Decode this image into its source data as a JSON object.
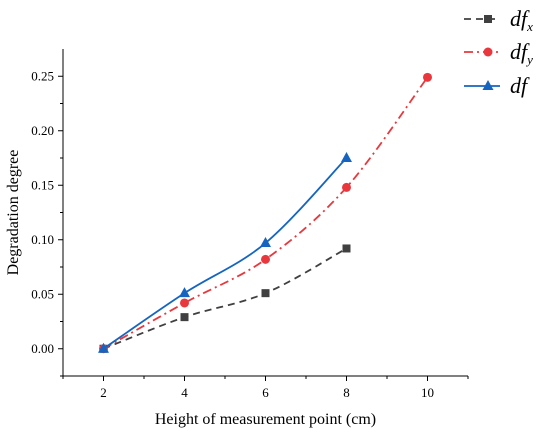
{
  "chart_data": {
    "type": "line",
    "xlabel": "Height of measurement point (cm)",
    "ylabel": "Degradation degree",
    "xlim": [
      1,
      11
    ],
    "ylim": [
      -0.025,
      0.275
    ],
    "xticks": [
      "2",
      "4",
      "6",
      "8",
      "10"
    ],
    "yticks": [
      "0.00",
      "0.05",
      "0.10",
      "0.15",
      "0.20",
      "0.25"
    ],
    "xtick_values": [
      2,
      4,
      6,
      8,
      10
    ],
    "ytick_values": [
      0,
      0.05,
      0.1,
      0.15,
      0.2,
      0.25
    ],
    "legend_position": "top-right, outside plot",
    "series": [
      {
        "name": "df",
        "subscript": "x",
        "color": "#404040",
        "marker": "square",
        "line_style": "dash",
        "x": [
          2,
          4,
          6,
          8
        ],
        "y": [
          0.0,
          0.029,
          0.051,
          0.092
        ]
      },
      {
        "name": "df",
        "subscript": "y",
        "color": "#e8383d",
        "marker": "circle",
        "line_style": "dash-dot",
        "x": [
          2,
          4,
          6,
          8,
          10
        ],
        "y": [
          0.0,
          0.042,
          0.082,
          0.148,
          0.249
        ]
      },
      {
        "name": "df",
        "subscript": "",
        "color": "#1565c0",
        "marker": "triangle",
        "line_style": "solid",
        "x": [
          2,
          4,
          6,
          8
        ],
        "y": [
          0.0,
          0.051,
          0.097,
          0.175
        ]
      }
    ]
  }
}
